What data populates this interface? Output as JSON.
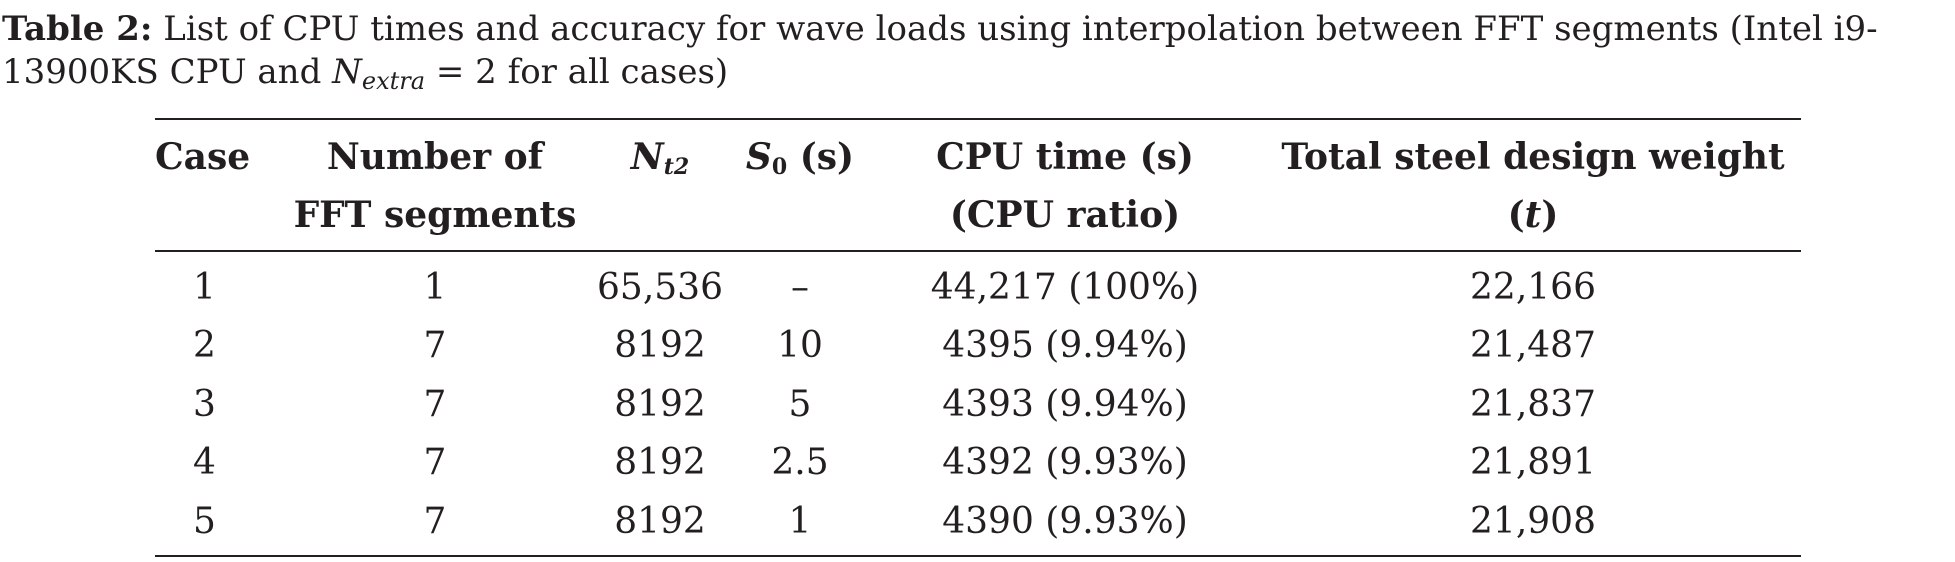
{
  "caption": {
    "label": "Table 2:",
    "text_part1": " List of CPU times and accuracy for wave loads using interpolation between FFT segments (Intel i9-13900KS CPU and ",
    "n_symbol": "N",
    "n_subscript": "extra",
    "text_part2": " = 2 for all cases)"
  },
  "table": {
    "headers": {
      "case": "Case",
      "segments": "Number of FFT segments",
      "nt2_symbol": "N",
      "nt2_subscript": "t2",
      "s0_symbol": "S",
      "s0_subscript": "0",
      "s0_unit": " (s)",
      "cpu_time": "CPU time (s)",
      "cpu_ratio": "(CPU ratio)",
      "weight_label": "Total steel design weight (",
      "weight_unit": "t",
      "weight_close": ")"
    },
    "rows": [
      {
        "case": "1",
        "segments": "1",
        "nt2": "65,536",
        "s0": "–",
        "cpu": "44,217 (100%)",
        "weight": "22,166"
      },
      {
        "case": "2",
        "segments": "7",
        "nt2": "8192",
        "s0": "10",
        "cpu": "4395 (9.94%)",
        "weight": "21,487"
      },
      {
        "case": "3",
        "segments": "7",
        "nt2": "8192",
        "s0": "5",
        "cpu": "4393 (9.94%)",
        "weight": "21,837"
      },
      {
        "case": "4",
        "segments": "7",
        "nt2": "8192",
        "s0": "2.5",
        "cpu": "4392 (9.93%)",
        "weight": "21,891"
      },
      {
        "case": "5",
        "segments": "7",
        "nt2": "8192",
        "s0": "1",
        "cpu": "4390 (9.93%)",
        "weight": "21,908"
      }
    ]
  }
}
